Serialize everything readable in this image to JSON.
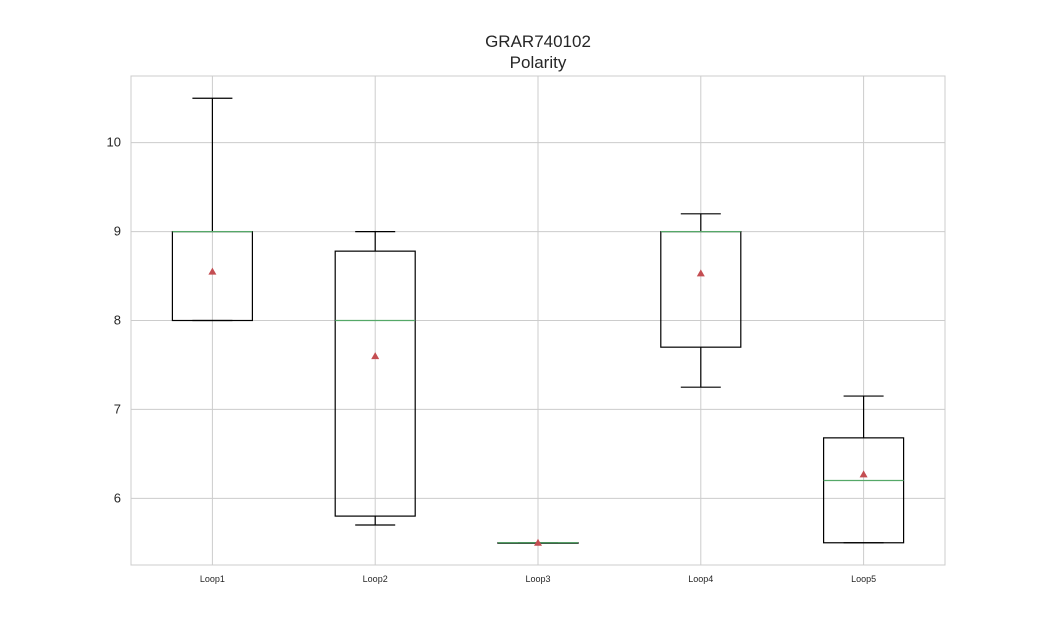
{
  "chart_data": {
    "type": "box",
    "title": "GRAR740102",
    "subtitle": "Polarity",
    "xlabel": "",
    "ylabel": "",
    "categories": [
      "Loop1",
      "Loop2",
      "Loop3",
      "Loop4",
      "Loop5"
    ],
    "yticks": [
      6,
      7,
      8,
      9,
      10
    ],
    "ylim": [
      5.25,
      10.75
    ],
    "grid": true,
    "boxes": [
      {
        "name": "Loop1",
        "whisker_low": 8.0,
        "q1": 8.0,
        "median": 9.0,
        "q3": 9.0,
        "whisker_high": 10.5,
        "mean": 8.55
      },
      {
        "name": "Loop2",
        "whisker_low": 5.7,
        "q1": 5.8,
        "median": 8.0,
        "q3": 8.78,
        "whisker_high": 9.0,
        "mean": 7.6
      },
      {
        "name": "Loop3",
        "whisker_low": 5.5,
        "q1": 5.5,
        "median": 5.5,
        "q3": 5.5,
        "whisker_high": 5.5,
        "mean": 5.5
      },
      {
        "name": "Loop4",
        "whisker_low": 7.25,
        "q1": 7.7,
        "median": 9.0,
        "q3": 9.0,
        "whisker_high": 9.2,
        "mean": 8.53
      },
      {
        "name": "Loop5",
        "whisker_low": 5.5,
        "q1": 5.5,
        "median": 6.2,
        "q3": 6.68,
        "whisker_high": 7.15,
        "mean": 6.27
      }
    ],
    "colors": {
      "box": "#000000",
      "median": "#55a868",
      "mean": "#c44e52",
      "grid": "#cccccc",
      "frame": "#cccccc"
    }
  }
}
